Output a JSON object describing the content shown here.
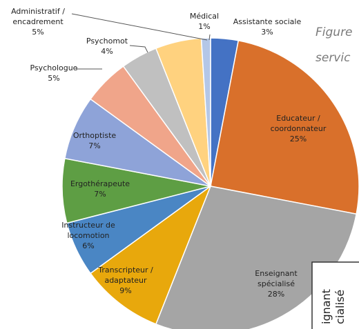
{
  "chart_data": {
    "type": "pie",
    "categories": [
      "Assistante sociale",
      "Educateur /\ncoordonnateur",
      "Enseignant\nspécialisé",
      "Transcripteur /\nadaptateur",
      "Instructeur de\nlocomotion",
      "Ergothérapeute",
      "Orthoptiste",
      "Psychologue",
      "Psychomot",
      "Administratif /\nencadrement",
      "Médical"
    ],
    "values": [
      3,
      25,
      28,
      9,
      6,
      7,
      7,
      5,
      4,
      5,
      1
    ],
    "value_labels": [
      "3%",
      "25%",
      "28%",
      "9%",
      "6%",
      "7%",
      "7%",
      "5%",
      "4%",
      "5%",
      "1%"
    ],
    "colors": [
      "#4472c4",
      "#d9702b",
      "#a5a5a5",
      "#e8a80c",
      "#4a86c4",
      "#5e9e44",
      "#8ea3d8",
      "#f0a58a",
      "#c0c0c0",
      "#ffd27f",
      "#b4c7e7"
    ]
  },
  "caption": [
    "Figure",
    "servic"
  ],
  "inset": [
    "ignant",
    "cialisé"
  ]
}
